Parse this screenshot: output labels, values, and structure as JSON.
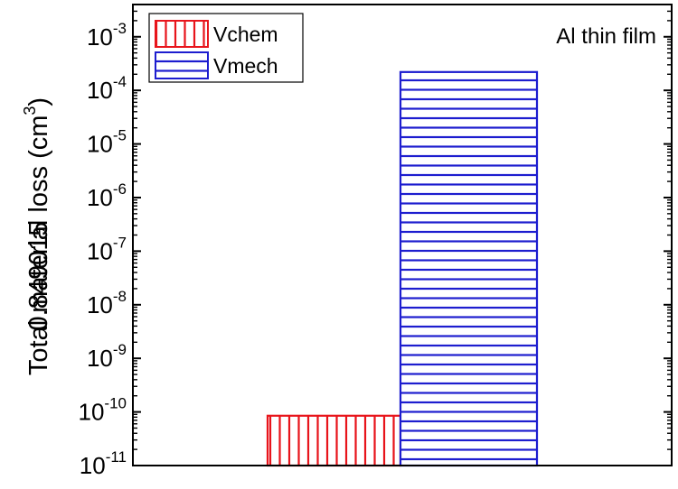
{
  "chart_data": {
    "type": "bar",
    "categories": [
      "Vchem",
      "Vmech"
    ],
    "series": [
      {
        "name": "Vchem",
        "value": 8.5e-11,
        "color": "#e8141b",
        "hatch": "vertical"
      },
      {
        "name": "Vmech",
        "value": 0.00022,
        "color": "#1d1dcf",
        "hatch": "horizontal"
      }
    ],
    "ylabel": "Total material loss (cm",
    "ylabel_unit_sup": "3",
    "ylabel_close": ")",
    "ylabel_overlap": "0.849015",
    "yscale": "log",
    "ylim": [
      1e-11,
      0.004
    ],
    "yticks": [
      {
        "value": 1e-11,
        "base": "10",
        "exp": "-11"
      },
      {
        "value": 1e-10,
        "base": "10",
        "exp": "-10"
      },
      {
        "value": 1e-09,
        "base": "10",
        "exp": "-9"
      },
      {
        "value": 1e-08,
        "base": "10",
        "exp": "-8"
      },
      {
        "value": 1e-07,
        "base": "10",
        "exp": "-7"
      },
      {
        "value": 1e-06,
        "base": "10",
        "exp": "-6"
      },
      {
        "value": 1e-05,
        "base": "10",
        "exp": "-5"
      },
      {
        "value": 0.0001,
        "base": "10",
        "exp": "-4"
      },
      {
        "value": 0.001,
        "base": "10",
        "exp": "-3"
      }
    ],
    "annotation": "Al thin film",
    "legend_position": "top-left",
    "grid": false
  }
}
